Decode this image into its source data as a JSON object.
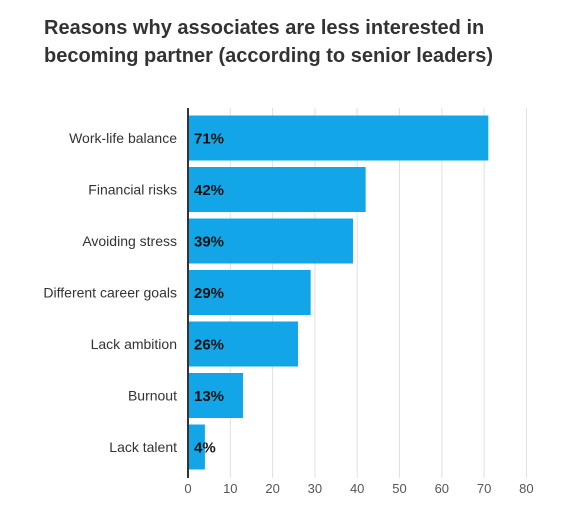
{
  "chart_data": {
    "type": "bar",
    "orientation": "horizontal",
    "title": "Reasons why associates are less interested in becoming partner (according to senior leaders)",
    "categories": [
      "Work-life balance",
      "Financial risks",
      "Avoiding stress",
      "Different career goals",
      "Lack ambition",
      "Burnout",
      "Lack talent"
    ],
    "values": [
      71,
      42,
      39,
      29,
      26,
      13,
      4
    ],
    "data_labels": [
      "71%",
      "42%",
      "39%",
      "29%",
      "26%",
      "13%",
      "4%"
    ],
    "x_ticks": [
      0,
      10,
      20,
      30,
      40,
      50,
      60,
      70,
      80
    ],
    "xlim": [
      0,
      80
    ],
    "xlabel": "",
    "ylabel": "",
    "grid": "vertical",
    "legend": "none",
    "bar_color": "#12a6e8",
    "grid_color": "#e0e0e0",
    "axis_color": "#333333"
  }
}
